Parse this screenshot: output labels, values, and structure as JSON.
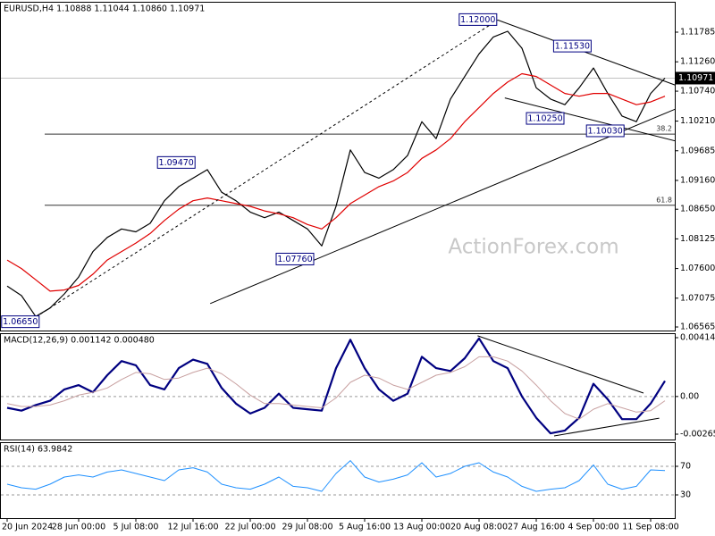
{
  "chart_data": [
    {
      "type": "line",
      "title": "EURUSD,H4 1.10888 1.11044 1.10860 1.10971",
      "watermark": "ActionForex.com",
      "categories": [
        "20 Jun 2024",
        null,
        null,
        null,
        null,
        "28 Jun 00:00",
        null,
        null,
        null,
        "5 Jul 08:00",
        null,
        null,
        null,
        "12 Jul 16:00",
        null,
        null,
        null,
        "22 Jul 00:00",
        null,
        null,
        null,
        "29 Jul 08:00",
        null,
        null,
        null,
        "5 Aug 16:00",
        null,
        null,
        null,
        "13 Aug 00:00",
        null,
        null,
        null,
        "20 Aug 08:00",
        null,
        null,
        null,
        "27 Aug 16:00",
        null,
        null,
        null,
        "4 Sep 00:00",
        null,
        null,
        null,
        "11 Sep 08:00",
        null
      ],
      "series": [
        {
          "color": "#000000",
          "values": [
            1.0729,
            1.0712,
            1.0675,
            1.069,
            1.0715,
            1.0745,
            1.079,
            1.0815,
            1.083,
            1.0825,
            1.084,
            1.088,
            1.0905,
            1.092,
            1.0935,
            1.0895,
            1.088,
            1.086,
            1.085,
            1.086,
            1.0845,
            1.083,
            1.08,
            1.087,
            1.097,
            1.093,
            1.092,
            1.0935,
            1.096,
            1.102,
            1.099,
            1.106,
            1.11,
            1.114,
            1.117,
            1.118,
            1.115,
            1.108,
            1.106,
            1.105,
            1.108,
            1.1115,
            1.107,
            1.103,
            1.102,
            1.107,
            1.1097
          ]
        },
        {
          "color": "#e00000",
          "values": [
            1.0775,
            1.076,
            1.074,
            1.072,
            1.0722,
            1.073,
            1.075,
            1.0775,
            1.079,
            1.0805,
            1.0822,
            1.0845,
            1.0865,
            1.088,
            1.0885,
            1.088,
            1.0875,
            1.087,
            1.0862,
            1.0857,
            1.085,
            1.0838,
            1.083,
            1.085,
            1.0875,
            1.089,
            1.0905,
            1.0915,
            1.093,
            1.0955,
            1.097,
            1.099,
            1.102,
            1.1045,
            1.107,
            1.109,
            1.1105,
            1.11,
            1.1085,
            1.107,
            1.1065,
            1.107,
            1.107,
            1.106,
            1.105,
            1.1055,
            1.1065
          ]
        }
      ],
      "ylim": [
        1.06502,
        1.12291
      ],
      "yticks": [
        1.11785,
        {
          "value": 1.1126,
          "label": "1.11260"
        },
        {
          "value": 1.1074,
          "label": "1.10740"
        },
        {
          "value": 1.1021,
          "label": "1.10210"
        },
        1.09685,
        {
          "value": 1.0916,
          "label": "1.09160"
        },
        {
          "value": 1.0865,
          "label": "1.08650"
        },
        1.08125,
        {
          "value": 1.076,
          "label": "1.07600"
        },
        1.07075,
        1.06565
      ],
      "last_price": 1.10971,
      "price_labels": [
        {
          "index": 34.3,
          "value": 1.12,
          "label": "1.12000"
        },
        {
          "index": 40.9,
          "value": 1.1153,
          "label": "1.11530"
        },
        {
          "index": 39,
          "value": 1.1025,
          "label": "1.10250"
        },
        {
          "index": 43.2,
          "value": 1.1003,
          "label": "1.10030"
        },
        {
          "index": 13.2,
          "value": 1.0947,
          "label": "1.09470"
        },
        {
          "index": 21.5,
          "value": 1.0776,
          "label": "1.07760"
        },
        {
          "index": 2.3,
          "value": 1.0665,
          "label": "1.06650"
        }
      ],
      "fib_levels": [
        {
          "level": 38.2,
          "price": 1.0998
        },
        {
          "level": 61.8,
          "price": 1.0872
        }
      ],
      "trendlines": [
        {
          "from": [
            2,
            1.0674
          ],
          "to": [
            34.3,
            1.12
          ],
          "dashed": true
        },
        {
          "from": [
            34.3,
            1.12
          ],
          "to": [
            46.7,
            1.1085
          ],
          "dashed": false
        },
        {
          "from": [
            34.8,
            1.1062
          ],
          "to": [
            46.7,
            1.0986
          ],
          "dashed": false
        },
        {
          "from": [
            14.2,
            1.0698
          ],
          "to": [
            46.7,
            1.1042
          ],
          "dashed": false
        }
      ]
    },
    {
      "type": "line",
      "title": "MACD(12,26,9) 0.001142 0.000480",
      "series": [
        {
          "color": "#000080",
          "width": 2.2,
          "values": [
            -0.0008,
            -0.001,
            -0.0006,
            -0.0003,
            0.0005,
            0.0008,
            0.0003,
            0.0015,
            0.0025,
            0.0022,
            0.0008,
            0.0005,
            0.002,
            0.0026,
            0.0023,
            0.0006,
            -0.0005,
            -0.0012,
            -0.0008,
            0.0002,
            -0.0008,
            -0.0009,
            -0.001,
            0.002,
            0.004,
            0.002,
            0.0005,
            -0.0003,
            0.0002,
            0.0028,
            0.002,
            0.0018,
            0.0027,
            0.0041,
            0.0025,
            0.002,
            0.0,
            -0.0015,
            -0.0026,
            -0.0024,
            -0.0015,
            0.0009,
            -0.0002,
            -0.0016,
            -0.0016,
            -0.0005,
            0.0011
          ]
        },
        {
          "color": "#c8a0a0",
          "width": 1,
          "values": [
            -0.0005,
            -0.0007,
            -0.0007,
            -0.0006,
            -0.0003,
            0.0001,
            0.0003,
            0.0006,
            0.0012,
            0.0017,
            0.0016,
            0.0012,
            0.0013,
            0.0017,
            0.002,
            0.0016,
            0.0009,
            0.0001,
            -0.0005,
            -0.0005,
            -0.0006,
            -0.0007,
            -0.0008,
            -0.0001,
            0.001,
            0.0015,
            0.0013,
            0.0008,
            0.0005,
            0.001,
            0.0015,
            0.0017,
            0.0021,
            0.0028,
            0.0028,
            0.0025,
            0.0018,
            0.0008,
            -0.0003,
            -0.0012,
            -0.0016,
            -0.0009,
            -0.0005,
            -0.0008,
            -0.0011,
            -0.001,
            -0.0003
          ]
        }
      ],
      "ylim": [
        -0.003034,
        0.004463
      ],
      "yticks": [
        0.004148,
        {
          "value": 0,
          "label": "0.00"
        },
        -0.002656
      ],
      "levels": [
        0
      ],
      "trendlines": [
        {
          "from": [
            32.9,
            0.00428
          ],
          "to": [
            44.5,
            0.00024
          ],
          "dashed": false
        },
        {
          "from": [
            38.25,
            -0.00278
          ],
          "to": [
            45.6,
            -0.00153
          ],
          "dashed": false
        }
      ]
    },
    {
      "type": "line",
      "title": "RSI(14) 63.9842",
      "series": [
        {
          "color": "#1e90ff",
          "width": 1,
          "values": [
            45,
            40,
            38,
            45,
            55,
            58,
            55,
            62,
            65,
            60,
            55,
            50,
            65,
            68,
            62,
            45,
            40,
            38,
            45,
            55,
            42,
            40,
            35,
            60,
            78,
            55,
            48,
            52,
            58,
            75,
            55,
            60,
            70,
            75,
            62,
            55,
            42,
            35,
            38,
            40,
            50,
            72,
            45,
            38,
            42,
            65,
            63.9842
          ]
        }
      ],
      "ylim": [
        0,
        100
      ],
      "yticks": [
        70,
        30
      ],
      "grid": true
    }
  ]
}
